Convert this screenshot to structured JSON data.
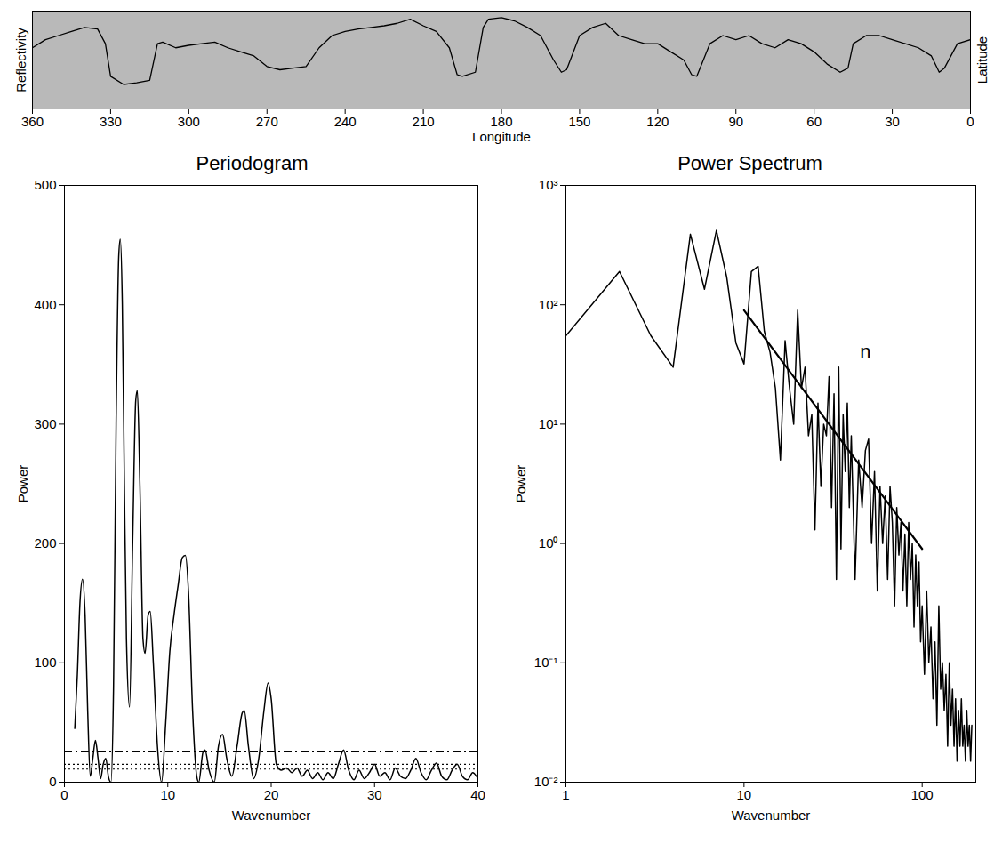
{
  "chart_data": [
    {
      "type": "line",
      "x_label": "Longitude",
      "y_label": "Reflectivity",
      "y2_label": "Latitude",
      "x": [
        360,
        355,
        350,
        345,
        340,
        335,
        332,
        330,
        325,
        320,
        315,
        312,
        310,
        305,
        300,
        295,
        290,
        285,
        280,
        275,
        270,
        265,
        260,
        255,
        250,
        245,
        240,
        235,
        230,
        225,
        220,
        215,
        210,
        205,
        200,
        197,
        195,
        190,
        187,
        185,
        180,
        175,
        170,
        165,
        160,
        157,
        155,
        150,
        145,
        140,
        135,
        130,
        125,
        120,
        115,
        110,
        107,
        105,
        100,
        95,
        90,
        85,
        80,
        75,
        70,
        65,
        60,
        55,
        50,
        47,
        45,
        40,
        35,
        30,
        25,
        20,
        15,
        12,
        10,
        5,
        0
      ],
      "values": [
        75,
        85,
        90,
        95,
        100,
        98,
        80,
        40,
        30,
        32,
        35,
        80,
        82,
        75,
        78,
        80,
        82,
        75,
        70,
        65,
        52,
        48,
        50,
        52,
        75,
        90,
        95,
        98,
        100,
        102,
        105,
        110,
        102,
        95,
        75,
        42,
        40,
        45,
        100,
        110,
        112,
        108,
        100,
        90,
        60,
        45,
        48,
        90,
        100,
        105,
        90,
        85,
        80,
        80,
        70,
        60,
        42,
        40,
        80,
        90,
        85,
        90,
        80,
        75,
        85,
        80,
        70,
        55,
        45,
        50,
        80,
        90,
        90,
        85,
        80,
        75,
        65,
        45,
        50,
        80,
        85
      ],
      "xlim": [
        360,
        0
      ],
      "xticks": [
        360,
        330,
        300,
        270,
        240,
        210,
        180,
        150,
        120,
        90,
        60,
        30,
        0
      ],
      "ylim": [
        0,
        120
      ],
      "tick_labels": "x",
      "color": "#000000"
    },
    {
      "type": "line",
      "title": "Periodogram",
      "x_label": "Wavenumber",
      "y_label": "Power",
      "x": [
        1.0,
        1.25,
        1.5,
        1.75,
        2.0,
        2.25,
        2.5,
        2.75,
        3.0,
        3.25,
        3.5,
        3.75,
        4.0,
        4.25,
        4.5,
        4.75,
        5.0,
        5.25,
        5.4,
        5.6,
        5.8,
        6.0,
        6.3,
        6.6,
        6.9,
        7.05,
        7.3,
        7.6,
        7.8,
        8.1,
        8.3,
        8.6,
        9.0,
        9.4,
        9.8,
        10.2,
        10.6,
        11.0,
        11.4,
        11.7,
        12.0,
        12.4,
        12.8,
        13.0,
        13.4,
        13.6,
        14.0,
        14.5,
        14.9,
        15.3,
        15.7,
        16.2,
        16.7,
        17.2,
        17.4,
        17.8,
        18.3,
        18.8,
        19.3,
        19.7,
        20.0,
        20.5,
        21.0,
        21.5,
        22.0,
        22.5,
        23.0,
        23.5,
        24.0,
        24.5,
        25.0,
        25.5,
        26.0,
        26.5,
        27.0,
        27.5,
        28.0,
        28.5,
        29.0,
        29.5,
        30.0,
        30.5,
        31.0,
        31.5,
        32.0,
        32.5,
        33.0,
        33.5,
        34.0,
        34.5,
        35.0,
        35.5,
        36.0,
        36.5,
        37.0,
        37.5,
        38.0,
        38.5,
        39.0,
        39.5,
        40.0
      ],
      "values": [
        45,
        90,
        150,
        170,
        140,
        60,
        5,
        20,
        35,
        20,
        3,
        15,
        20,
        5,
        0,
        80,
        300,
        440,
        455,
        400,
        250,
        120,
        63,
        200,
        320,
        328,
        250,
        120,
        108,
        140,
        143,
        100,
        30,
        0,
        50,
        110,
        140,
        165,
        188,
        190,
        160,
        60,
        5,
        0,
        25,
        27,
        10,
        0,
        30,
        40,
        20,
        5,
        30,
        58,
        60,
        30,
        3,
        20,
        60,
        83,
        70,
        15,
        10,
        12,
        8,
        12,
        5,
        10,
        3,
        8,
        2,
        8,
        3,
        15,
        27,
        10,
        2,
        10,
        3,
        8,
        15,
        5,
        8,
        2,
        12,
        5,
        3,
        10,
        20,
        8,
        2,
        10,
        16,
        5,
        2,
        10,
        15,
        5,
        2,
        8,
        3
      ],
      "xlim": [
        0,
        40
      ],
      "xticks": [
        0,
        10,
        20,
        30,
        40
      ],
      "ylim": [
        0,
        500
      ],
      "yticks": [
        0,
        100,
        200,
        300,
        400,
        500
      ],
      "reference_lines": [
        {
          "value": 26,
          "line_style": "dashdot"
        },
        {
          "value": 15,
          "line_style": "dotted"
        },
        {
          "value": 11,
          "line_style": "dotted"
        }
      ],
      "color": "#000000"
    },
    {
      "type": "line",
      "title": "Power Spectrum",
      "x_label": "Wavenumber",
      "y_label": "Power",
      "log": true,
      "x": [
        1,
        2,
        3,
        4,
        5,
        6,
        7,
        8,
        9,
        10,
        11,
        12,
        13,
        14,
        15,
        16,
        17,
        18,
        19,
        20,
        21,
        22,
        23,
        24,
        25,
        26,
        27,
        28,
        29,
        30,
        31,
        32,
        33,
        34,
        35,
        36,
        37,
        38,
        39,
        40,
        42,
        44,
        46,
        48,
        50,
        52,
        54,
        56,
        58,
        60,
        62,
        64,
        66,
        68,
        70,
        72,
        74,
        76,
        78,
        80,
        82,
        84,
        86,
        88,
        90,
        92,
        94,
        96,
        98,
        100,
        103,
        106,
        109,
        112,
        115,
        118,
        121,
        124,
        127,
        130,
        133,
        136,
        139,
        142,
        145,
        148,
        151,
        154,
        157,
        160,
        163,
        166,
        169,
        172,
        175,
        178,
        181,
        184,
        187,
        190
      ],
      "values": [
        55,
        190,
        55,
        30,
        390,
        135,
        420,
        170,
        48,
        32,
        190,
        210,
        60,
        40,
        20,
        5,
        50,
        20,
        10,
        90,
        20,
        30,
        8,
        12,
        1.3,
        15,
        3,
        10,
        8,
        25,
        2,
        18,
        0.5,
        30,
        0.9,
        12,
        4,
        15,
        2,
        8,
        0.5,
        5,
        2,
        6,
        7.5,
        1,
        4,
        0.4,
        3,
        1,
        2.5,
        0.5,
        3,
        1.5,
        0.3,
        2,
        0.8,
        1.5,
        0.4,
        1.2,
        0.3,
        1.5,
        0.5,
        1,
        0.2,
        0.8,
        0.3,
        0.7,
        0.15,
        0.3,
        0.08,
        0.4,
        0.1,
        0.2,
        0.05,
        0.15,
        0.03,
        0.3,
        0.06,
        0.1,
        0.04,
        0.08,
        0.02,
        0.1,
        0.03,
        0.06,
        0.02,
        0.05,
        0.015,
        0.04,
        0.02,
        0.05,
        0.02,
        0.03,
        0.015,
        0.04,
        0.02,
        0.03,
        0.015,
        0.03
      ],
      "fit": {
        "x": [
          10,
          100
        ],
        "values": [
          90,
          0.9
        ]
      },
      "annotations": [
        {
          "text": "n",
          "x": 48,
          "y": 40
        }
      ],
      "xlim": [
        1,
        200
      ],
      "xticks": [
        1,
        10,
        100
      ],
      "ylim": [
        0.01,
        1000
      ],
      "yticks": [
        {
          "value": 0.01,
          "label": "10⁻²"
        },
        {
          "value": 0.1,
          "label": "10⁻¹"
        },
        {
          "value": 1,
          "label": "10⁰"
        },
        {
          "value": 10,
          "label": "10¹"
        },
        {
          "value": 100,
          "label": "10²"
        },
        {
          "value": 1000,
          "label": "10³"
        }
      ],
      "color": "#000000"
    }
  ]
}
